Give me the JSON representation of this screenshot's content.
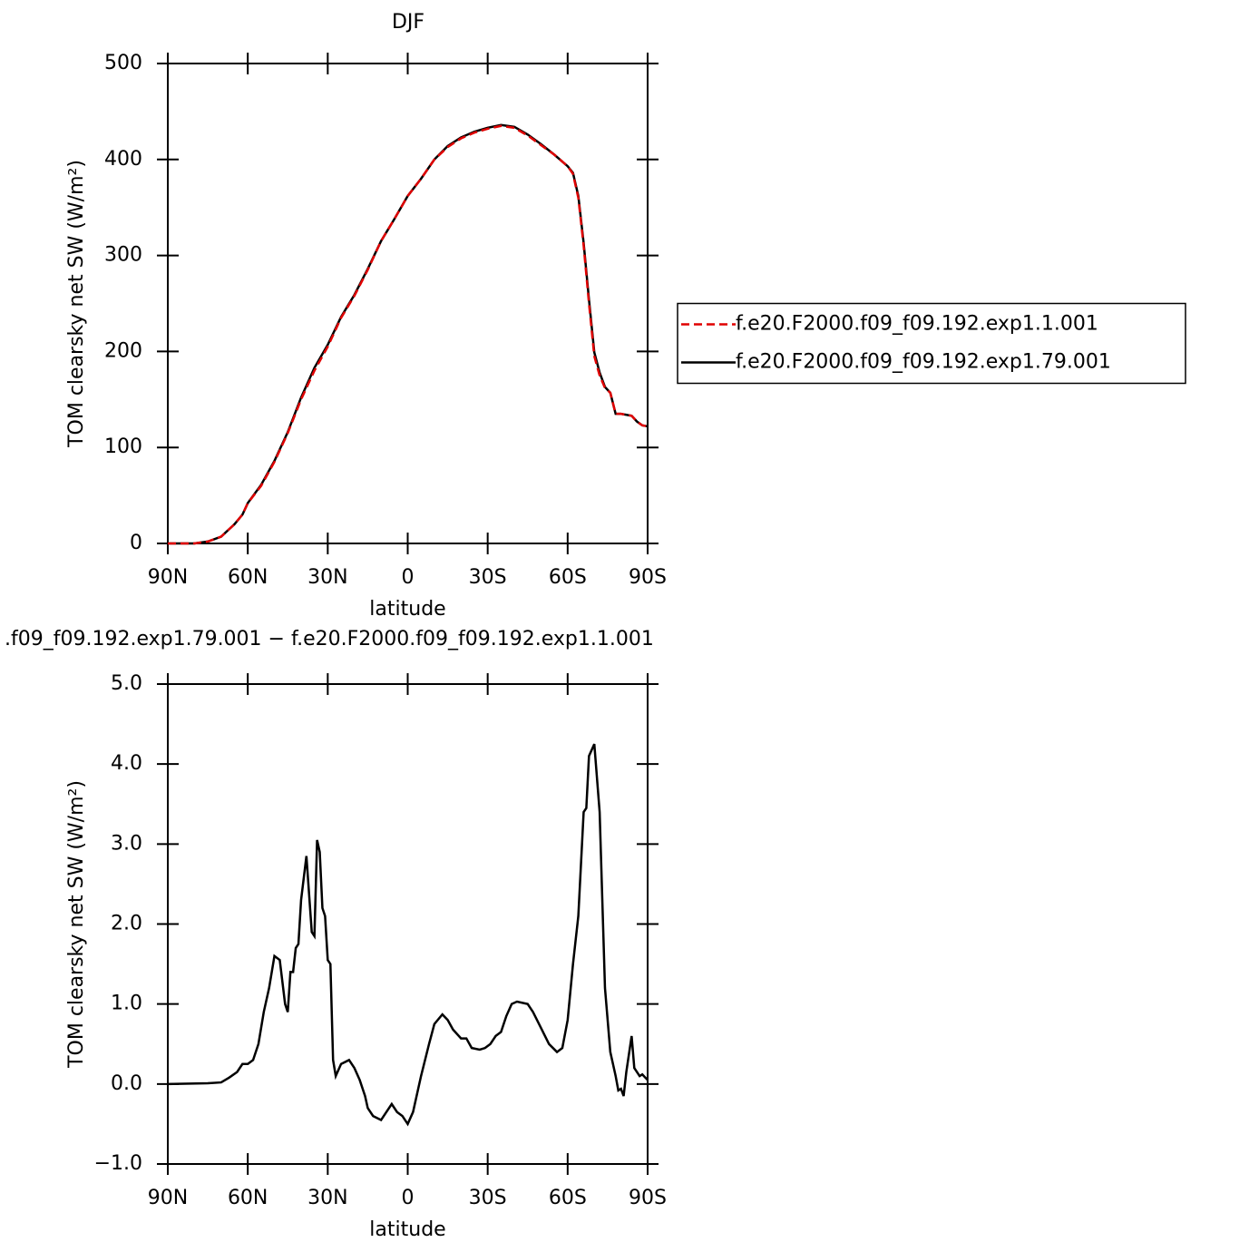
{
  "chart_data": [
    {
      "type": "line",
      "title": "DJF",
      "xlabel": "latitude",
      "ylabel": "TOM clearsky net SW (W/m²)",
      "x": [
        90,
        80,
        75,
        70,
        65,
        62,
        60,
        55,
        50,
        45,
        40,
        35,
        30,
        25,
        20,
        15,
        10,
        5,
        0,
        -5,
        -10,
        -15,
        -20,
        -25,
        -30,
        -35,
        -40,
        -45,
        -50,
        -55,
        -60,
        -62,
        -64,
        -66,
        -68,
        -70,
        -72,
        -74,
        -76,
        -78,
        -80,
        -84,
        -86,
        -88,
        -90
      ],
      "series": [
        {
          "name": "f.e20.F2000.f09_f09.192.exp1.1.001",
          "color": "#e00000",
          "linestyle": "dashed",
          "values": [
            0,
            0,
            2,
            7,
            20,
            30,
            42,
            60,
            85,
            115,
            150,
            180,
            205,
            235,
            258,
            285,
            315,
            338,
            362,
            380,
            400,
            413,
            422,
            428,
            432,
            435,
            433,
            425,
            415,
            405,
            393,
            385,
            360,
            310,
            250,
            195,
            175,
            162,
            157,
            135,
            135,
            133,
            127,
            123,
            122
          ]
        },
        {
          "name": "f.e20.F2000.f09_f09.192.exp1.79.001",
          "color": "#000000",
          "linestyle": "solid",
          "values": [
            0,
            0,
            2,
            7,
            20,
            30,
            42,
            61,
            86,
            116,
            152,
            183,
            207,
            236,
            259,
            286,
            315,
            338,
            362,
            380,
            400,
            414,
            423,
            429,
            433,
            436,
            434,
            426,
            416,
            405,
            393,
            386,
            362,
            313,
            254,
            199,
            178,
            163,
            157,
            135,
            135,
            133,
            127,
            123,
            122
          ]
        }
      ],
      "xlim": [
        90,
        -90
      ],
      "ylim": [
        0,
        500
      ],
      "xticks": [
        {
          "value": 90,
          "label": "90N"
        },
        {
          "value": 60,
          "label": "60N"
        },
        {
          "value": 30,
          "label": "30N"
        },
        0,
        {
          "value": -30,
          "label": "30S"
        },
        {
          "value": -60,
          "label": "60S"
        },
        {
          "value": -90,
          "label": "90S"
        }
      ],
      "yticks": [
        0,
        100,
        200,
        300,
        400,
        500
      ],
      "legend": "right"
    },
    {
      "type": "line",
      "title": ".f09_f09.192.exp1.79.001 − f.e20.F2000.f09_f09.192.exp1.1.001",
      "xlabel": "latitude",
      "ylabel": "TOM clearsky net SW (W/m²)",
      "x": [
        90,
        75,
        70,
        67,
        64,
        62,
        60,
        58,
        56,
        54,
        52,
        50,
        48,
        46,
        45,
        44,
        43,
        42,
        41,
        40,
        38,
        36,
        35,
        34,
        33,
        32,
        31,
        30,
        29,
        28,
        27,
        25,
        22,
        20,
        18,
        16,
        15,
        13,
        10,
        8,
        6,
        4,
        2,
        0,
        -2,
        -5,
        -8,
        -10,
        -13,
        -15,
        -17,
        -20,
        -22,
        -24,
        -27,
        -29,
        -31,
        -33,
        -35,
        -37,
        -39,
        -41,
        -45,
        -47,
        -50,
        -53,
        -56,
        -58,
        -60,
        -62,
        -64,
        -66,
        -67,
        -68,
        -70,
        -72,
        -74,
        -76,
        -78,
        -79,
        -80,
        -81,
        -82,
        -84,
        -85,
        -87,
        -88,
        -90
      ],
      "series": [
        {
          "color": "#000000",
          "linestyle": "solid",
          "values": [
            0,
            0.01,
            0.02,
            0.08,
            0.15,
            0.25,
            0.25,
            0.3,
            0.5,
            0.9,
            1.2,
            1.6,
            1.55,
            1.0,
            0.9,
            1.4,
            1.4,
            1.7,
            1.75,
            2.3,
            2.85,
            1.9,
            1.85,
            3.05,
            2.9,
            2.2,
            2.1,
            1.55,
            1.5,
            0.3,
            0.1,
            0.25,
            0.3,
            0.2,
            0.05,
            -0.15,
            -0.3,
            -0.4,
            -0.45,
            -0.35,
            -0.25,
            -0.35,
            -0.4,
            -0.5,
            -0.35,
            0.1,
            0.5,
            0.75,
            0.87,
            0.8,
            0.68,
            0.57,
            0.57,
            0.45,
            0.43,
            0.45,
            0.5,
            0.6,
            0.65,
            0.85,
            1.0,
            1.03,
            1.0,
            0.9,
            0.7,
            0.5,
            0.4,
            0.45,
            0.8,
            1.5,
            2.1,
            3.4,
            3.45,
            4.1,
            4.25,
            3.4,
            1.2,
            0.4,
            0.1,
            -0.08,
            -0.06,
            -0.15,
            0.15,
            0.6,
            0.2,
            0.1,
            0.12,
            0.05
          ]
        }
      ],
      "xlim": [
        90,
        -90
      ],
      "ylim": [
        -1,
        5
      ],
      "xticks": [
        {
          "value": 90,
          "label": "90N"
        },
        {
          "value": 60,
          "label": "60N"
        },
        {
          "value": 30,
          "label": "30N"
        },
        0,
        {
          "value": -30,
          "label": "30S"
        },
        {
          "value": -60,
          "label": "60S"
        },
        {
          "value": -90,
          "label": "90S"
        }
      ],
      "yticks": [
        {
          "value": -1,
          "label": "−1.0"
        },
        {
          "value": 0,
          "label": "0.0"
        },
        {
          "value": 1,
          "label": "1.0"
        },
        {
          "value": 2,
          "label": "2.0"
        },
        {
          "value": 3,
          "label": "3.0"
        },
        {
          "value": 4,
          "label": "4.0"
        },
        {
          "value": 5,
          "label": "5.0"
        }
      ]
    }
  ]
}
